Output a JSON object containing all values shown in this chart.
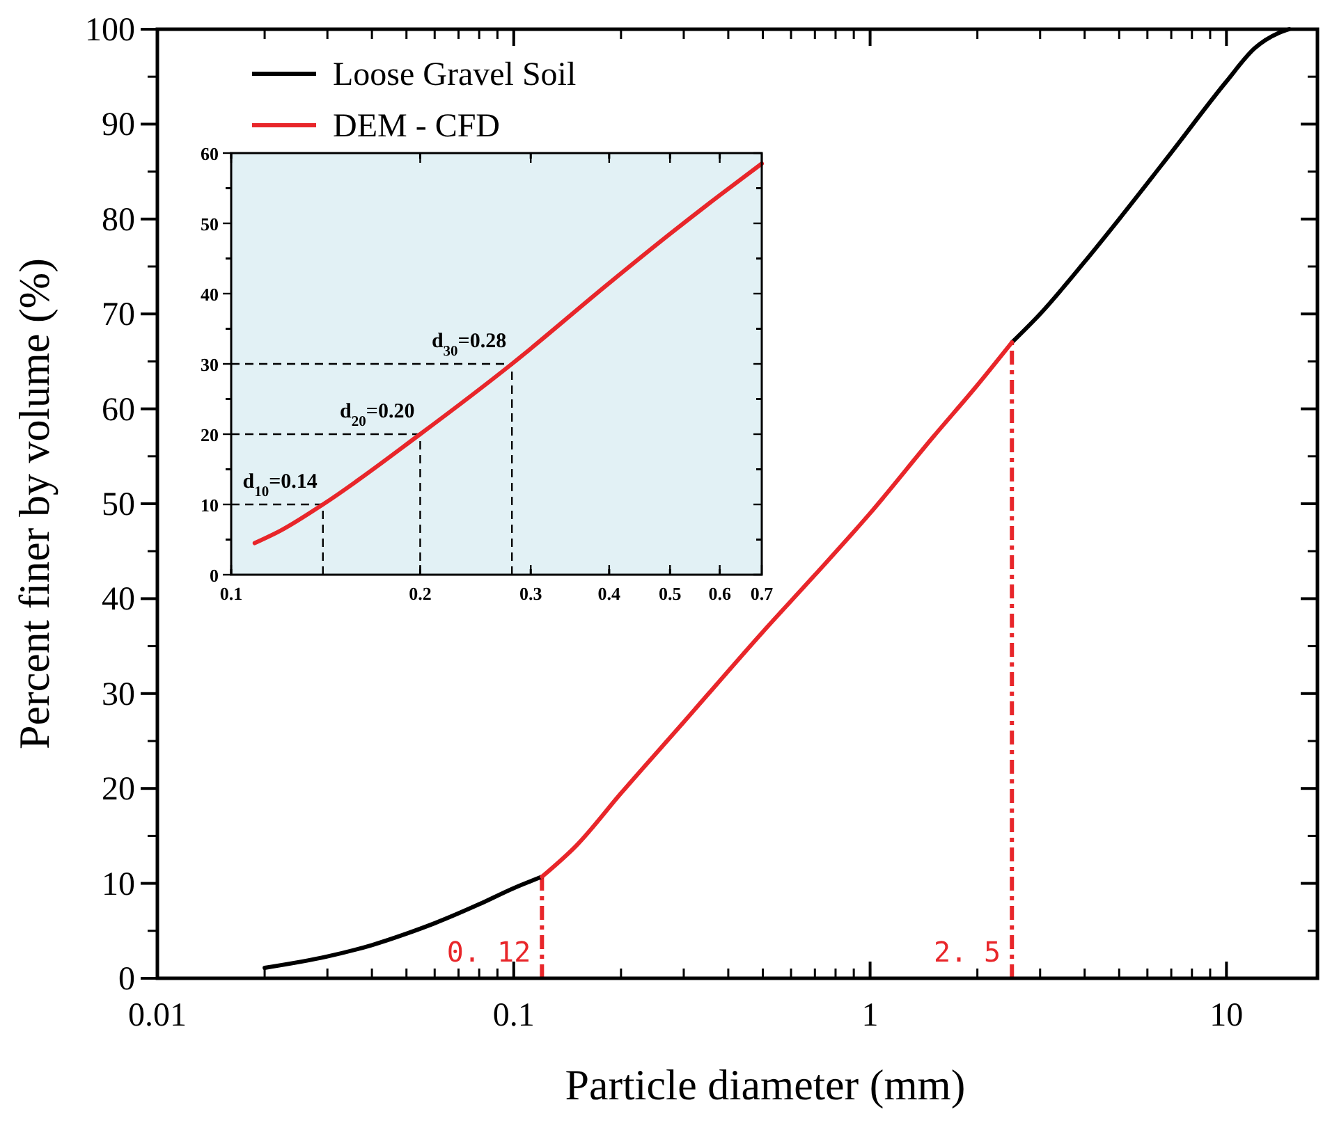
{
  "chart_data": [
    {
      "type": "line",
      "xlabel": "Particle diameter (mm)",
      "ylabel": "Percent finer by volume (%)",
      "log": "x",
      "xlim": [
        0.01,
        18
      ],
      "ylim": [
        0,
        100
      ],
      "xticks": [
        0.01,
        0.1,
        1,
        10
      ],
      "yticks": [
        0,
        10,
        20,
        30,
        40,
        50,
        60,
        70,
        80,
        90,
        100
      ],
      "legend": "top left",
      "series": [
        {
          "name": "Loose Gravel Soil",
          "color": "#000000",
          "x": [
            0.02,
            0.03,
            0.04,
            0.05,
            0.06,
            0.08,
            0.1,
            0.12,
            1,
            2.5,
            3,
            4,
            5,
            7,
            10,
            12,
            14,
            15
          ],
          "values": [
            1.1,
            2.3,
            3.5,
            4.7,
            5.8,
            7.8,
            9.5,
            10.7,
            null,
            67,
            70,
            75.5,
            80,
            87,
            94.5,
            98,
            99.6,
            100
          ]
        },
        {
          "name": "DEM - CFD",
          "color": "#e8262a",
          "x": [
            0.12,
            0.15,
            0.2,
            0.3,
            0.5,
            0.7,
            1,
            1.5,
            2,
            2.5
          ],
          "values": [
            10.7,
            14,
            19.5,
            27,
            36.5,
            42.5,
            49,
            57,
            62.5,
            67
          ]
        }
      ],
      "ref_lines": [
        {
          "axis": "x",
          "value": 0.12,
          "label": "0. 12",
          "color": "#e8262a",
          "line_style": "dashdot"
        },
        {
          "axis": "x",
          "value": 2.5,
          "label": "2. 5",
          "color": "#e8262a",
          "line_style": "dashdot"
        }
      ]
    },
    {
      "type": "line",
      "log": "x",
      "xlim": [
        0.1,
        0.7
      ],
      "ylim": [
        0,
        60
      ],
      "xticks": [
        0.1,
        0.2,
        0.3,
        0.4,
        0.5,
        0.6,
        0.7
      ],
      "yticks": [
        0,
        10,
        20,
        30,
        40,
        50,
        60
      ],
      "series": [
        {
          "color": "#e8262a",
          "x": [
            0.109,
            0.12,
            0.14,
            0.2,
            0.28,
            0.4,
            0.5,
            0.6,
            0.7
          ],
          "values": [
            4.5,
            6.3,
            10,
            20,
            30,
            41.5,
            48.5,
            54,
            58.5
          ]
        }
      ],
      "ref_lines": [
        {
          "axis": "y",
          "value": 10,
          "color": "#000000",
          "line_style": "dashed"
        },
        {
          "axis": "x",
          "value": 0.14,
          "color": "#000000",
          "line_style": "dashed"
        },
        {
          "axis": "y",
          "value": 20,
          "color": "#000000",
          "line_style": "dashed"
        },
        {
          "axis": "x",
          "value": 0.2,
          "color": "#000000",
          "line_style": "dashed"
        },
        {
          "axis": "y",
          "value": 30,
          "color": "#000000",
          "line_style": "dashed"
        },
        {
          "axis": "x",
          "value": 0.28,
          "color": "#000000",
          "line_style": "dashed"
        }
      ],
      "annotations": [
        {
          "text": "d$_{10}$=0.14",
          "x": 0.14,
          "y": 10
        },
        {
          "text": "d$_{20}$=0.20",
          "x": 0.2,
          "y": 20
        },
        {
          "text": "d$_{30}$=0.28",
          "x": 0.28,
          "y": 30
        }
      ]
    }
  ]
}
